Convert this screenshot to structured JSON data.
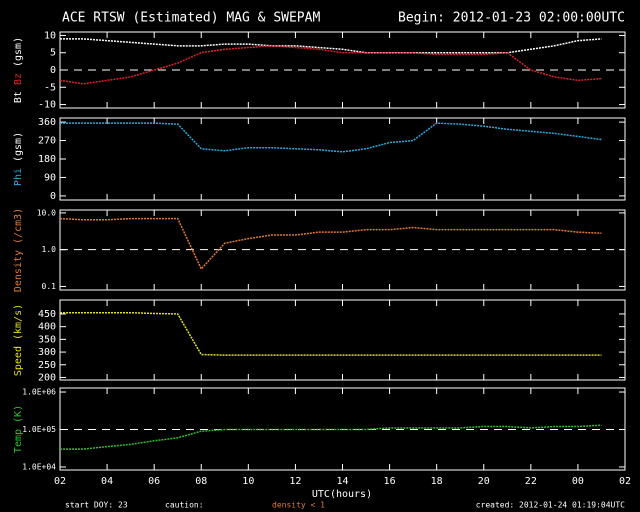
{
  "header": {
    "title": "ACE RTSW (Estimated) MAG & SWEPAM",
    "begin": "Begin: 2012-01-23 02:00:00UTC"
  },
  "footer": {
    "doy_label": "start DOY:",
    "doy": "23",
    "caution": "caution:",
    "caution_note": "density < 1",
    "created": "created: 2012-01-24 01:19:04UTC"
  },
  "xlabel": "UTC(hours)",
  "xlim": [
    0,
    24
  ],
  "xticks": [
    {
      "value": 0,
      "label": "02"
    },
    {
      "value": 2,
      "label": "04"
    },
    {
      "value": 4,
      "label": "06"
    },
    {
      "value": 6,
      "label": "08"
    },
    {
      "value": 8,
      "label": "10"
    },
    {
      "value": 10,
      "label": "12"
    },
    {
      "value": 12,
      "label": "14"
    },
    {
      "value": 14,
      "label": "16"
    },
    {
      "value": 16,
      "label": "18"
    },
    {
      "value": 18,
      "label": "20"
    },
    {
      "value": 20,
      "label": "22"
    },
    {
      "value": 22,
      "label": "00"
    },
    {
      "value": 24,
      "label": "02"
    }
  ],
  "chart_data": [
    {
      "type": "line",
      "ylabel_parts": [
        {
          "text": "Bt",
          "color": "#ffffff"
        },
        {
          "text": "Bz",
          "color": "#e0202a"
        },
        {
          "text": "(gsm)",
          "color": "#ffffff"
        }
      ],
      "ylim": [
        -11,
        11
      ],
      "yticks": [
        -10,
        -5,
        0,
        5,
        10
      ],
      "ref_line": 0,
      "log": false,
      "x": [
        0,
        1,
        2,
        3,
        4,
        5,
        6,
        7,
        8,
        9,
        10,
        11,
        12,
        13,
        14,
        15,
        16,
        17,
        18,
        19,
        20,
        21,
        22,
        23
      ],
      "series": [
        {
          "name": "Bt",
          "color": "#ffffff",
          "values": [
            9,
            9,
            8.5,
            8,
            7.5,
            7,
            7,
            7.5,
            7.5,
            7,
            7,
            6.5,
            6,
            5,
            5,
            5,
            5,
            5,
            5,
            5,
            6,
            7,
            8.5,
            9
          ]
        },
        {
          "name": "Bz",
          "color": "#e0202a",
          "values": [
            -3,
            -4,
            -3,
            -2,
            0,
            2,
            5,
            6,
            6.5,
            7,
            6.5,
            6,
            5,
            5,
            5,
            5,
            4.5,
            4.5,
            4.5,
            5,
            0,
            -2,
            -3,
            -2.5
          ]
        }
      ]
    },
    {
      "type": "line",
      "ylabel_parts": [
        {
          "text": "Phi",
          "color": "#2aa8e0"
        },
        {
          "text": "(gsm)",
          "color": "#ffffff"
        }
      ],
      "ylim": [
        -20,
        380
      ],
      "yticks": [
        0,
        90,
        180,
        270,
        360
      ],
      "log": false,
      "x": [
        0,
        1,
        2,
        3,
        4,
        5,
        6,
        7,
        8,
        9,
        10,
        11,
        12,
        13,
        14,
        15,
        16,
        17,
        18,
        19,
        20,
        21,
        22,
        23
      ],
      "series": [
        {
          "name": "Phi",
          "color": "#2aa8e0",
          "values": [
            355,
            355,
            355,
            355,
            355,
            350,
            230,
            220,
            235,
            235,
            230,
            225,
            215,
            230,
            260,
            270,
            355,
            350,
            340,
            325,
            315,
            305,
            290,
            275
          ]
        }
      ]
    },
    {
      "type": "line",
      "ylabel_parts": [
        {
          "text": "Density (/cm3)",
          "color": "#e07a3a"
        }
      ],
      "ylim": [
        0.08,
        12
      ],
      "log": true,
      "ref_line": 1,
      "yticks": [
        {
          "value": 0.1,
          "label": "0.1"
        },
        {
          "value": 1,
          "label": "1.0"
        },
        {
          "value": 10,
          "label": "10.0"
        }
      ],
      "x": [
        0,
        1,
        2,
        3,
        4,
        5,
        6,
        7,
        8,
        9,
        10,
        11,
        12,
        13,
        14,
        15,
        16,
        17,
        18,
        19,
        20,
        21,
        22,
        23
      ],
      "series": [
        {
          "name": "Density",
          "color": "#e07a3a",
          "values": [
            7,
            6.5,
            6.5,
            7,
            7,
            7,
            0.3,
            1.5,
            2,
            2.5,
            2.5,
            3,
            3,
            3.5,
            3.5,
            4,
            3.5,
            3.5,
            3.5,
            3.5,
            3.5,
            3.5,
            3,
            2.8
          ]
        }
      ]
    },
    {
      "type": "line",
      "ylabel_parts": [
        {
          "text": "Speed (km/s)",
          "color": "#e0e020"
        }
      ],
      "ylim": [
        190,
        505
      ],
      "yticks": [
        200,
        250,
        300,
        350,
        400,
        450
      ],
      "log": false,
      "x": [
        0,
        1,
        2,
        3,
        4,
        5,
        6,
        7,
        8,
        9,
        10,
        11,
        12,
        13,
        14,
        15,
        16,
        17,
        18,
        19,
        20,
        21,
        22,
        23
      ],
      "series": [
        {
          "name": "Speed",
          "color": "#e0e020",
          "values": [
            455,
            455,
            455,
            455,
            452,
            450,
            290,
            288,
            288,
            288,
            288,
            288,
            288,
            288,
            288,
            288,
            288,
            288,
            288,
            288,
            288,
            288,
            288,
            288
          ]
        }
      ]
    },
    {
      "type": "line",
      "ylabel_parts": [
        {
          "text": "Temp (K)",
          "color": "#30c030"
        }
      ],
      "ylim": [
        8300,
        1280000
      ],
      "log": true,
      "ref_line": 100000,
      "yticks": [
        {
          "value": 10000,
          "label": "1.0E+04"
        },
        {
          "value": 100000,
          "label": "1.0E+05"
        },
        {
          "value": 1000000,
          "label": "1.0E+06"
        }
      ],
      "x": [
        0,
        1,
        2,
        3,
        4,
        5,
        6,
        7,
        8,
        9,
        10,
        11,
        12,
        13,
        14,
        15,
        16,
        17,
        18,
        19,
        20,
        21,
        22,
        23
      ],
      "series": [
        {
          "name": "Temp",
          "color": "#30c030",
          "values": [
            30000,
            30000,
            35000,
            40000,
            50000,
            60000,
            90000,
            100000,
            100000,
            100000,
            100000,
            100000,
            100000,
            100000,
            110000,
            110000,
            110000,
            110000,
            120000,
            120000,
            110000,
            120000,
            120000,
            130000
          ]
        }
      ]
    }
  ]
}
